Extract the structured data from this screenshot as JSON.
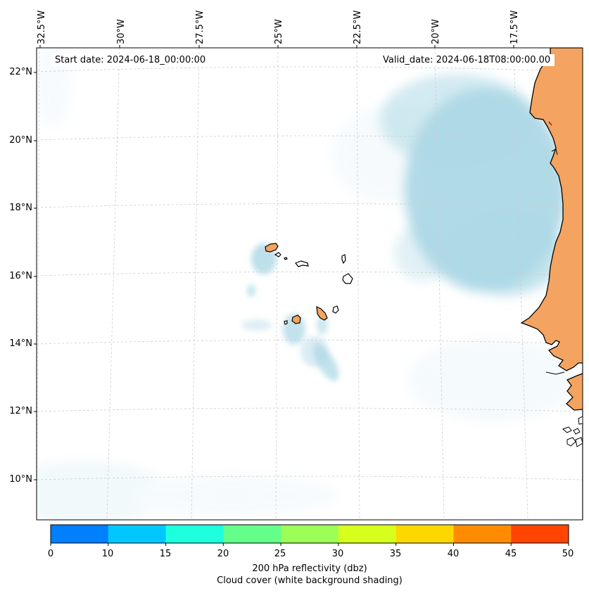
{
  "map": {
    "start_date_text": "Start date: 2024-06-18_00:00:00",
    "valid_date_text": "Valid_date: 2024-06-18T08:00:00.00",
    "lon_labels": [
      "32.5°W",
      "30°W",
      "27.5°W",
      "25°W",
      "22.5°W",
      "20°W",
      "17.5°W"
    ],
    "lat_labels": [
      "22°N",
      "20°N",
      "18°N",
      "16°N",
      "14°N",
      "12°N",
      "10°N"
    ]
  },
  "colorbar": {
    "ticks": [
      "0",
      "10",
      "15",
      "20",
      "25",
      "30",
      "35",
      "40",
      "45",
      "50"
    ],
    "colors": [
      "#007fff",
      "#00c8ff",
      "#1effde",
      "#64ff8a",
      "#9cff58",
      "#d6ff1e",
      "#ffd700",
      "#ff8c00",
      "#ff4500"
    ],
    "label_line1": "200 hPa reflectivity (dbz)",
    "label_line2": "Cloud cover (white background shading)"
  },
  "colors": {
    "cloud": "#add8e6",
    "land": "#f4a460",
    "coast": "#000000",
    "grid": "#cccccc"
  }
}
